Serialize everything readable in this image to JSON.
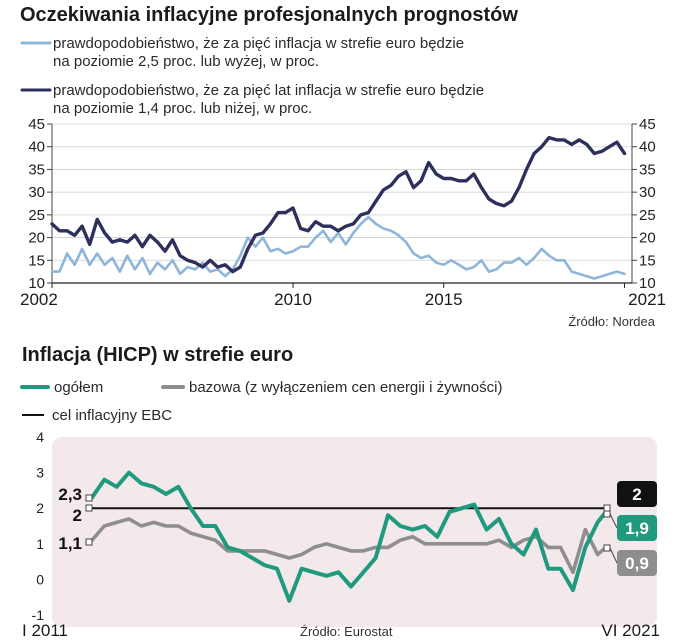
{
  "chart_data": [
    {
      "type": "line",
      "title": "Oczekiwania inflacyjne profesjonalnych prognostów",
      "legend": [
        {
          "label_line1": "prawdopodobieństwo, że za pięć inflacja w strefie euro będzie",
          "label_line2": "na poziomie 2,5 proc. lub wyżej, w proc.",
          "color": "#8fb5dc"
        },
        {
          "label_line1": "prawdopodobieństwo, że za pięć lat inflacja w strefie euro będzie",
          "label_line2": "na poziomie 1,4 proc. lub niżej, w proc.",
          "color": "#2d2f5c"
        }
      ],
      "ylim": [
        10,
        45
      ],
      "yticks": [
        "45",
        "40",
        "35",
        "30",
        "25",
        "20",
        "15",
        "10"
      ],
      "xlim": [
        2002,
        2021.25
      ],
      "xticks": [
        {
          "value": 2002,
          "label": "2002"
        },
        {
          "value": 2010,
          "label": "2010"
        },
        {
          "value": 2015,
          "label": "2015"
        },
        {
          "value": 2021,
          "label": "2021"
        }
      ],
      "source": "Źródło: Nordea",
      "series": [
        {
          "name": "2,5 proc. lub wyżej",
          "color": "#8fb5dc",
          "x": [
            2002.0,
            2002.25,
            2002.5,
            2002.75,
            2003.0,
            2003.25,
            2003.5,
            2003.75,
            2004.0,
            2004.25,
            2004.5,
            2004.75,
            2005.0,
            2005.25,
            2005.5,
            2005.75,
            2006.0,
            2006.25,
            2006.5,
            2006.75,
            2007.0,
            2007.25,
            2007.5,
            2007.75,
            2008.0,
            2008.25,
            2008.5,
            2008.75,
            2009.0,
            2009.25,
            2009.5,
            2009.75,
            2010.0,
            2010.25,
            2010.5,
            2010.75,
            2011.0,
            2011.25,
            2011.5,
            2011.75,
            2012.0,
            2012.25,
            2012.5,
            2012.75,
            2013.0,
            2013.25,
            2013.5,
            2013.75,
            2014.0,
            2014.25,
            2014.5,
            2014.75,
            2015.0,
            2015.25,
            2015.5,
            2015.75,
            2016.0,
            2016.25,
            2016.5,
            2016.75,
            2017.0,
            2017.25,
            2017.5,
            2017.75,
            2018.0,
            2018.25,
            2018.5,
            2018.75,
            2019.0,
            2019.25,
            2019.5,
            2019.75,
            2020.0,
            2020.25,
            2020.5,
            2020.75,
            2021.0
          ],
          "y": [
            12.5,
            12.5,
            16.5,
            14.0,
            17.5,
            14.0,
            16.5,
            14.0,
            15.5,
            12.5,
            16.0,
            13.0,
            15.5,
            12.0,
            14.5,
            13.0,
            15.0,
            12.0,
            13.5,
            13.0,
            14.5,
            12.5,
            13.0,
            11.5,
            13.0,
            16.0,
            20.0,
            18.0,
            20.0,
            17.0,
            17.5,
            16.5,
            17.0,
            18.0,
            18.0,
            20.0,
            21.5,
            19.0,
            21.0,
            18.5,
            21.0,
            23.0,
            24.5,
            23.0,
            22.0,
            21.5,
            20.5,
            19.0,
            16.5,
            15.5,
            16.0,
            14.5,
            14.0,
            15.0,
            14.0,
            13.0,
            13.5,
            15.0,
            12.5,
            13.0,
            14.5,
            14.5,
            15.5,
            14.0,
            15.5,
            17.5,
            16.0,
            15.0,
            15.0,
            12.5,
            12.0,
            11.5,
            11.0,
            11.5,
            12.0,
            12.5,
            12.0
          ]
        },
        {
          "name": "1,4 proc. lub niżej",
          "color": "#2d2f5c",
          "x": [
            2002.0,
            2002.25,
            2002.5,
            2002.75,
            2003.0,
            2003.25,
            2003.5,
            2003.75,
            2004.0,
            2004.25,
            2004.5,
            2004.75,
            2005.0,
            2005.25,
            2005.5,
            2005.75,
            2006.0,
            2006.25,
            2006.5,
            2006.75,
            2007.0,
            2007.25,
            2007.5,
            2007.75,
            2008.0,
            2008.25,
            2008.5,
            2008.75,
            2009.0,
            2009.25,
            2009.5,
            2009.75,
            2010.0,
            2010.25,
            2010.5,
            2010.75,
            2011.0,
            2011.25,
            2011.5,
            2011.75,
            2012.0,
            2012.25,
            2012.5,
            2012.75,
            2013.0,
            2013.25,
            2013.5,
            2013.75,
            2014.0,
            2014.25,
            2014.5,
            2014.75,
            2015.0,
            2015.25,
            2015.5,
            2015.75,
            2016.0,
            2016.25,
            2016.5,
            2016.75,
            2017.0,
            2017.25,
            2017.5,
            2017.75,
            2018.0,
            2018.25,
            2018.5,
            2018.75,
            2019.0,
            2019.25,
            2019.5,
            2019.75,
            2020.0,
            2020.25,
            2020.5,
            2020.75,
            2021.0
          ],
          "y": [
            23.0,
            21.5,
            21.5,
            20.5,
            22.5,
            18.5,
            24.0,
            21.0,
            19.0,
            19.5,
            19.0,
            20.5,
            18.0,
            20.5,
            19.0,
            17.0,
            19.5,
            16.0,
            15.0,
            14.5,
            13.5,
            15.0,
            13.5,
            14.0,
            12.5,
            13.5,
            17.5,
            20.5,
            21.0,
            23.0,
            25.5,
            25.5,
            26.5,
            22.0,
            21.5,
            23.5,
            22.5,
            22.5,
            21.5,
            22.5,
            23.0,
            25.0,
            25.5,
            28.0,
            30.5,
            31.5,
            33.5,
            34.5,
            31.0,
            32.5,
            36.5,
            34.0,
            33.0,
            33.0,
            32.5,
            32.5,
            34.0,
            31.0,
            28.5,
            27.5,
            27.0,
            28.0,
            31.0,
            35.0,
            38.5,
            40.0,
            42.0,
            41.5,
            41.5,
            40.5,
            41.5,
            40.5,
            38.5,
            39.0,
            40.0,
            41.0,
            38.5
          ]
        }
      ]
    },
    {
      "type": "line",
      "title": "Inflacja (HICP) w strefie euro",
      "legend": [
        {
          "label": "ogółem",
          "color": "#1f9a7e"
        },
        {
          "label": "bazowa (z wyłączeniem cen energii i żywności)",
          "color": "#8e8e8e"
        },
        {
          "label": "cel inflacyjny EBC",
          "color": "#111111"
        }
      ],
      "ylim": [
        -1,
        4
      ],
      "yticks": [
        "4",
        "3",
        "2",
        "1",
        "0",
        "-1"
      ],
      "xlim": [
        2011.0,
        2021.42
      ],
      "x_start_label": "I 2011",
      "x_end_label": "VI 2021",
      "source": "Źródło: Eurostat",
      "target_line": 2.0,
      "annotations": {
        "left_total": "2,3",
        "left_target": "2",
        "left_core": "1,1",
        "right_target": "2",
        "right_total": "1,9",
        "right_core": "0,9"
      },
      "series": [
        {
          "name": "ogółem",
          "color": "#1f9a7e",
          "x": [
            2011.0,
            2011.25,
            2011.5,
            2011.75,
            2012.0,
            2012.25,
            2012.5,
            2012.75,
            2013.0,
            2013.25,
            2013.5,
            2013.75,
            2014.0,
            2014.25,
            2014.5,
            2014.75,
            2015.0,
            2015.25,
            2015.5,
            2015.75,
            2016.0,
            2016.25,
            2016.5,
            2016.75,
            2017.0,
            2017.25,
            2017.5,
            2017.75,
            2018.0,
            2018.25,
            2018.5,
            2018.75,
            2019.0,
            2019.25,
            2019.5,
            2019.75,
            2020.0,
            2020.25,
            2020.5,
            2020.75,
            2021.0,
            2021.25,
            2021.42
          ],
          "y": [
            2.3,
            2.8,
            2.6,
            3.0,
            2.7,
            2.6,
            2.4,
            2.6,
            2.0,
            1.5,
            1.5,
            0.9,
            0.8,
            0.6,
            0.4,
            0.3,
            -0.6,
            0.3,
            0.2,
            0.1,
            0.2,
            -0.2,
            0.2,
            0.6,
            1.8,
            1.5,
            1.4,
            1.5,
            1.2,
            1.9,
            2.0,
            2.1,
            1.4,
            1.7,
            1.0,
            0.7,
            1.4,
            0.3,
            0.3,
            -0.3,
            0.9,
            1.6,
            1.9
          ]
        },
        {
          "name": "bazowa",
          "color": "#8e8e8e",
          "x": [
            2011.0,
            2011.25,
            2011.5,
            2011.75,
            2012.0,
            2012.25,
            2012.5,
            2012.75,
            2013.0,
            2013.25,
            2013.5,
            2013.75,
            2014.0,
            2014.25,
            2014.5,
            2014.75,
            2015.0,
            2015.25,
            2015.5,
            2015.75,
            2016.0,
            2016.25,
            2016.5,
            2016.75,
            2017.0,
            2017.25,
            2017.5,
            2017.75,
            2018.0,
            2018.25,
            2018.5,
            2018.75,
            2019.0,
            2019.25,
            2019.5,
            2019.75,
            2020.0,
            2020.25,
            2020.5,
            2020.75,
            2021.0,
            2021.25,
            2021.42
          ],
          "y": [
            1.1,
            1.5,
            1.6,
            1.7,
            1.5,
            1.6,
            1.5,
            1.5,
            1.3,
            1.2,
            1.1,
            0.8,
            0.8,
            0.8,
            0.8,
            0.7,
            0.6,
            0.7,
            0.9,
            1.0,
            0.9,
            0.8,
            0.8,
            0.9,
            0.9,
            1.1,
            1.2,
            1.0,
            1.0,
            1.0,
            1.0,
            1.0,
            1.0,
            1.1,
            0.9,
            1.1,
            1.2,
            0.9,
            0.9,
            0.2,
            1.4,
            0.7,
            0.9
          ]
        }
      ]
    }
  ]
}
